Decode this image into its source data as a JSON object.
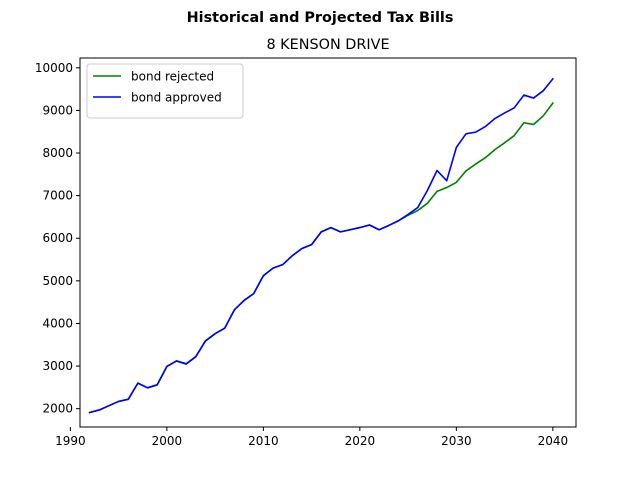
{
  "figure": {
    "suptitle": "Historical and Projected Tax Bills",
    "title": "8 KENSON DRIVE"
  },
  "chart_data": {
    "type": "line",
    "title": "8 KENSON DRIVE",
    "suptitle": "Historical and Projected Tax Bills",
    "xlabel": "",
    "ylabel": "",
    "xlim": [
      1991,
      2042.4
    ],
    "ylim": [
      1570,
      10230
    ],
    "x_ticks": [
      1990,
      2000,
      2010,
      2020,
      2030,
      2040
    ],
    "y_ticks": [
      2000,
      3000,
      4000,
      5000,
      6000,
      7000,
      8000,
      9000,
      10000
    ],
    "grid": false,
    "legend": {
      "placement": "upper-left",
      "entries": [
        "bond rejected",
        "bond approved"
      ]
    },
    "series": [
      {
        "name": "bond rejected",
        "color": "#008000",
        "x": [
          1992,
          1993,
          1994,
          1995,
          1996,
          1997,
          1998,
          1999,
          2000,
          2001,
          2002,
          2003,
          2004,
          2005,
          2006,
          2007,
          2008,
          2009,
          2010,
          2011,
          2012,
          2013,
          2014,
          2015,
          2016,
          2017,
          2018,
          2019,
          2020,
          2021,
          2022,
          2023,
          2024,
          2025,
          2026,
          2027,
          2028,
          2029,
          2030,
          2031,
          2032,
          2033,
          2034,
          2035,
          2036,
          2037,
          2038,
          2039,
          2040
        ],
        "values": [
          1910,
          1970,
          2070,
          2170,
          2220,
          2600,
          2490,
          2560,
          2990,
          3120,
          3050,
          3220,
          3590,
          3760,
          3890,
          4320,
          4540,
          4700,
          5120,
          5300,
          5380,
          5590,
          5760,
          5850,
          6150,
          6250,
          6150,
          6200,
          6250,
          6310,
          6200,
          6300,
          6410,
          6540,
          6650,
          6820,
          7100,
          7190,
          7310,
          7580,
          7740,
          7890,
          8080,
          8240,
          8410,
          8710,
          8670,
          8870,
          9170
        ]
      },
      {
        "name": "bond approved",
        "color": "#0000ff",
        "x": [
          1992,
          1993,
          1994,
          1995,
          1996,
          1997,
          1998,
          1999,
          2000,
          2001,
          2002,
          2003,
          2004,
          2005,
          2006,
          2007,
          2008,
          2009,
          2010,
          2011,
          2012,
          2013,
          2014,
          2015,
          2016,
          2017,
          2018,
          2019,
          2020,
          2021,
          2022,
          2023,
          2024,
          2025,
          2026,
          2027,
          2028,
          2029,
          2030,
          2031,
          2032,
          2033,
          2034,
          2035,
          2036,
          2037,
          2038,
          2039,
          2040
        ],
        "values": [
          1910,
          1970,
          2070,
          2170,
          2220,
          2600,
          2490,
          2560,
          2990,
          3120,
          3050,
          3220,
          3590,
          3760,
          3890,
          4320,
          4540,
          4700,
          5120,
          5300,
          5380,
          5590,
          5760,
          5850,
          6150,
          6250,
          6150,
          6200,
          6250,
          6310,
          6200,
          6300,
          6410,
          6560,
          6720,
          7120,
          7590,
          7350,
          8130,
          8450,
          8490,
          8620,
          8810,
          8940,
          9060,
          9360,
          9290,
          9460,
          9740
        ]
      }
    ]
  }
}
